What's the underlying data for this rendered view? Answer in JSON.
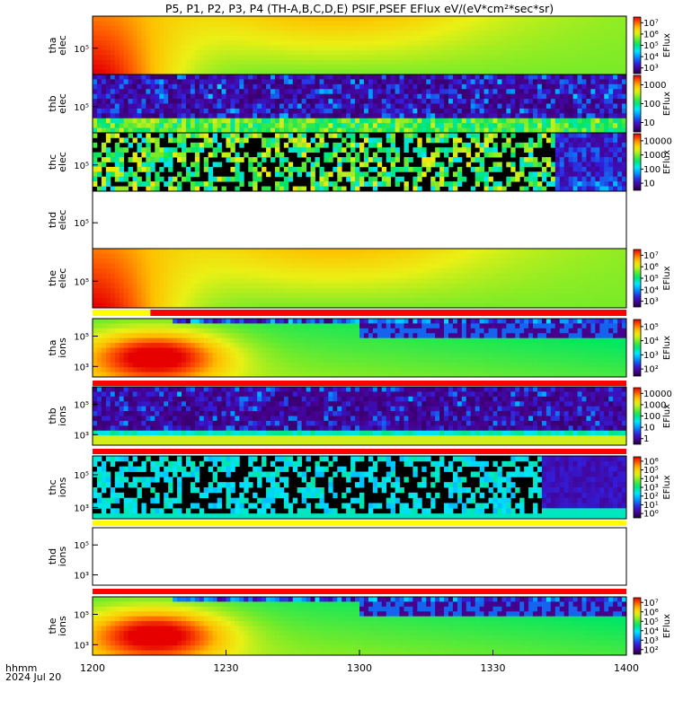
{
  "chart_data": {
    "type": "heatmap",
    "title": "P5, P1, P2, P3, P4 (TH-A,B,C,D,E) PSIF,PSEF EFlux eV/(eV*cm²*sec*sr)",
    "x_ticks": [
      "1200",
      "1230",
      "1300",
      "1330",
      "1400"
    ],
    "x_tick_values": [
      0,
      30,
      60,
      90,
      120
    ],
    "xlim": [
      0,
      120
    ],
    "xlabel_line1": "hhmm",
    "xlabel_line2": "2024 Jul 20",
    "colorbar_label": "EFlux",
    "panels": [
      {
        "id": "tha-elec",
        "label": "tha",
        "sublabel": "elec",
        "y_ticks": [
          "10⁵"
        ],
        "pattern": "elec-smooth",
        "has_data": true,
        "colorbar_ticks": [
          "10⁷",
          "10⁶",
          "10⁵",
          "10⁴",
          "10³"
        ],
        "colorbar_range": [
          2.5,
          7.2
        ],
        "log_range": [
          2.5,
          7.2
        ],
        "status_bar": []
      },
      {
        "id": "thb-elec",
        "label": "thb",
        "sublabel": "elec",
        "y_ticks": [
          "10⁵"
        ],
        "pattern": "noisy-low",
        "has_data": true,
        "colorbar_ticks": [
          "1000",
          "100",
          "10"
        ],
        "colorbar_range": [
          0.5,
          3.7
        ],
        "log_range": [
          0.5,
          3.7
        ],
        "status_bar": []
      },
      {
        "id": "thc-elec",
        "label": "thc",
        "sublabel": "elec",
        "y_ticks": [
          "10⁵"
        ],
        "pattern": "sparse",
        "has_data": true,
        "colorbar_ticks": [
          "10000",
          "1000",
          "100",
          "10"
        ],
        "colorbar_range": [
          0.5,
          4.6
        ],
        "log_range": [
          0.5,
          4.6
        ],
        "status_bar": []
      },
      {
        "id": "thd-elec",
        "label": "thd",
        "sublabel": "elec",
        "y_ticks": [
          "10⁵"
        ],
        "pattern": "none",
        "has_data": false,
        "colorbar_ticks": [],
        "colorbar_range": [
          0,
          1
        ],
        "log_range": [
          0,
          1
        ],
        "status_bar": []
      },
      {
        "id": "the-elec",
        "label": "the",
        "sublabel": "elec",
        "y_ticks": [
          "10⁵"
        ],
        "pattern": "elec-smooth",
        "has_data": true,
        "colorbar_ticks": [
          "10⁷",
          "10⁶",
          "10⁵",
          "10⁴",
          "10³"
        ],
        "colorbar_range": [
          2.5,
          7.2
        ],
        "log_range": [
          2.5,
          7.2
        ],
        "status_bar": [
          {
            "from": 0,
            "to": 13,
            "color": "#ffff00"
          },
          {
            "from": 13,
            "to": 120,
            "color": "#ff0000"
          }
        ]
      },
      {
        "id": "tha-ions",
        "label": "tha",
        "sublabel": "ions",
        "y_ticks": [
          "10⁵",
          "10³"
        ],
        "pattern": "ions-smooth",
        "has_data": true,
        "colorbar_ticks": [
          "10⁵",
          "10⁴",
          "10³",
          "10²"
        ],
        "colorbar_range": [
          1.7,
          5.7
        ],
        "log_range": [
          1.7,
          5.7
        ],
        "status_bar": [
          {
            "from": 0,
            "to": 120,
            "color": "#ff0000"
          }
        ]
      },
      {
        "id": "thb-ions",
        "label": "thb",
        "sublabel": "ions",
        "y_ticks": [
          "10⁵",
          "10³"
        ],
        "pattern": "noisy-ions",
        "has_data": true,
        "colorbar_ticks": [
          "10000",
          "1000",
          "100",
          "10",
          "1"
        ],
        "colorbar_range": [
          0,
          4.1
        ],
        "log_range": [
          0,
          4.1
        ],
        "status_bar": [
          {
            "from": 0,
            "to": 120,
            "color": "#ff0000"
          }
        ]
      },
      {
        "id": "thc-ions",
        "label": "thc",
        "sublabel": "ions",
        "y_ticks": [
          "10⁵",
          "10³"
        ],
        "pattern": "sparse-ions",
        "has_data": true,
        "colorbar_ticks": [
          "10⁶",
          "10⁵",
          "10⁴",
          "10³",
          "10²",
          "10¹",
          "10⁰"
        ],
        "colorbar_range": [
          -0.2,
          6.2
        ],
        "log_range": [
          -0.2,
          6.2
        ],
        "status_bar": [
          {
            "from": 0,
            "to": 120,
            "color": "#ffff00"
          }
        ]
      },
      {
        "id": "thd-ions",
        "label": "thd",
        "sublabel": "ions",
        "y_ticks": [
          "10⁵",
          "10³"
        ],
        "pattern": "none",
        "has_data": false,
        "colorbar_ticks": [],
        "colorbar_range": [
          0,
          1
        ],
        "log_range": [
          0,
          1
        ],
        "status_bar": [
          {
            "from": 0,
            "to": 120,
            "color": "#ff0000"
          }
        ]
      },
      {
        "id": "the-ions",
        "label": "the",
        "sublabel": "ions",
        "y_ticks": [
          "10⁵",
          "10³"
        ],
        "pattern": "ions-smooth",
        "has_data": true,
        "colorbar_ticks": [
          "10⁷",
          "10⁶",
          "10⁵",
          "10⁴",
          "10³",
          "10²"
        ],
        "colorbar_range": [
          1.7,
          7.2
        ],
        "log_range": [
          1.7,
          7.2
        ],
        "status_bar": []
      }
    ]
  }
}
